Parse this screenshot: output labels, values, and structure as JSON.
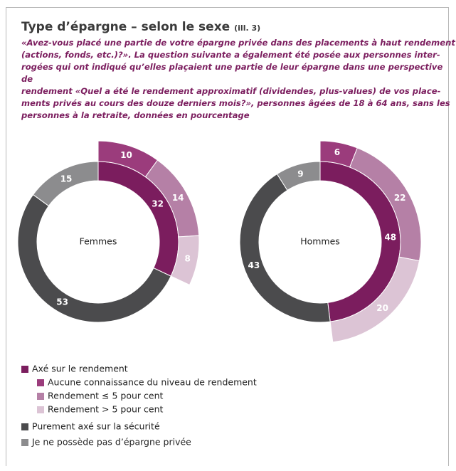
{
  "chart_data": {
    "type": "donut",
    "title": "Type d’épargne – selon le sexe",
    "title_note": "(ill. 3)",
    "subtitle": "«Avez-vous placé une partie de votre épargne privée dans des placements à haut rendement\n(actions, fonds, etc.)?». La question suivante a également été posée aux personnes inter-\nrogées qui ont indiqué qu’elles plaçaient une partie de leur épargne dans une perspective de\nrendement «Quel a été le rendement approximatif (dividendes, plus-values) de vos place-\nments privés au cours des douze derniers mois?», personnes âgées de 18 à 64 ans, sans les\npersonnes à la retraite, données en pourcentage",
    "categories": [
      "Axé sur le rendement",
      "Purement axé sur la sécurité",
      "Je ne possède pas d’épargne privée"
    ],
    "colors": [
      "#7b1d5e",
      "#4b4b4d",
      "#8c8c8e"
    ],
    "outer_categories": [
      "Aucune connaissance du niveau de rendement",
      "Rendement ≤ 5 pour cent",
      "Rendement > 5 pour cent"
    ],
    "outer_colors": [
      "#9b3c7c",
      "#b580a6",
      "#dcc4d5"
    ],
    "series": [
      {
        "name": "Femmes",
        "values": [
          32,
          53,
          15
        ],
        "outer_values": [
          10,
          14,
          8
        ]
      },
      {
        "name": "Hommes",
        "values": [
          48,
          43,
          9
        ],
        "outer_values": [
          6,
          22,
          20
        ]
      }
    ]
  }
}
